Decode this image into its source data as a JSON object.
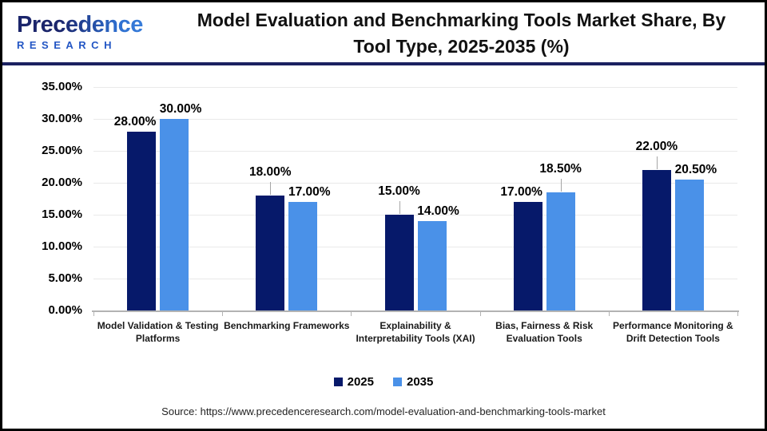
{
  "header": {
    "logo": {
      "brand": "Precedence",
      "sub": "RESEARCH"
    },
    "title": "Model Evaluation and Benchmarking Tools Market Share, By Tool Type, 2025-2035 (%)"
  },
  "chart_data": {
    "type": "bar",
    "title": "Model Evaluation and Benchmarking Tools Market Share, By Tool Type, 2025-2035 (%)",
    "categories": [
      "Model Validation & Testing Platforms",
      "Benchmarking Frameworks",
      "Explainability & Interpretability Tools (XAI)",
      "Bias, Fairness & Risk Evaluation Tools",
      "Performance Monitoring & Drift Detection Tools"
    ],
    "series": [
      {
        "name": "2025",
        "color": "#06196a",
        "values": [
          28,
          18,
          15,
          17,
          22
        ],
        "labels": [
          "28.00%",
          "18.00%",
          "15.00%",
          "17.00%",
          "22.00%"
        ],
        "lifted": [
          false,
          true,
          true,
          false,
          true
        ]
      },
      {
        "name": "2035",
        "color": "#4a91e8",
        "values": [
          30,
          17,
          14,
          18.5,
          20.5
        ],
        "labels": [
          "30.00%",
          "17.00%",
          "14.00%",
          "18.50%",
          "20.50%"
        ],
        "lifted": [
          false,
          false,
          false,
          true,
          false
        ]
      }
    ],
    "ylim": [
      0,
      35
    ],
    "ytick_step": 5,
    "yticks": [
      "0.00%",
      "5.00%",
      "10.00%",
      "15.00%",
      "20.00%",
      "25.00%",
      "30.00%",
      "35.00%"
    ],
    "grid": true,
    "legend_position": "bottom",
    "xlabel": "",
    "ylabel": ""
  },
  "colors": {
    "divider_navy": "#1b2160",
    "gridline": "#e9e9e9",
    "axis": "#b3b3b3"
  },
  "footer": {
    "source": "Source: https://www.precedenceresearch.com/model-evaluation-and-benchmarking-tools-market"
  }
}
